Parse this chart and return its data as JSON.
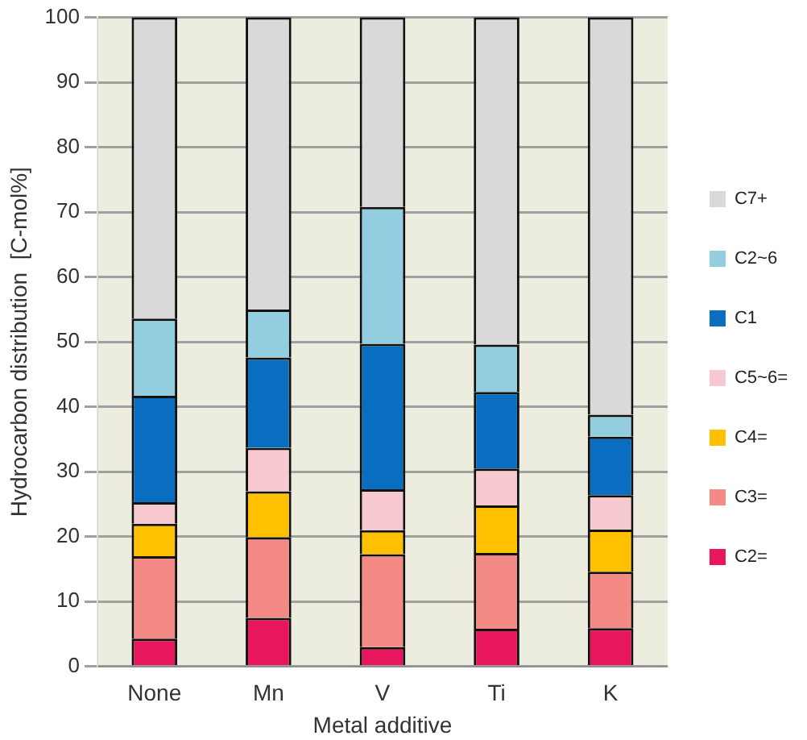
{
  "chart_data": {
    "type": "bar",
    "stacked": true,
    "xlabel": "Metal additive",
    "ylabel": "Hydrocarbon distribution  [C-mol%]",
    "categories": [
      "None",
      "Mn",
      "V",
      "Ti",
      "K"
    ],
    "series": [
      {
        "name": "C2=",
        "color": "#e8175d",
        "values": [
          4.3,
          7.5,
          3,
          5.8,
          5.9
        ]
      },
      {
        "name": "C3=",
        "color": "#f48a86",
        "values": [
          12.7,
          12.4,
          14.3,
          11.7,
          8.7
        ]
      },
      {
        "name": "C4=",
        "color": "#ffc000",
        "values": [
          5,
          7.1,
          3.7,
          7.3,
          6.5
        ]
      },
      {
        "name": "C5~6=",
        "color": "#f6c9d0",
        "values": [
          3.3,
          6.7,
          6.3,
          5.7,
          5.3
        ]
      },
      {
        "name": "C1",
        "color": "#0a6ec0",
        "values": [
          16.4,
          13.9,
          22.4,
          11.8,
          9
        ]
      },
      {
        "name": "C2~6",
        "color": "#92cde0",
        "values": [
          11.9,
          7.4,
          21.1,
          7.3,
          3.4
        ]
      },
      {
        "name": "C7+",
        "color": "#d9d9d9",
        "values": [
          46.4,
          45,
          29.2,
          50.4,
          61.2
        ]
      }
    ],
    "ylim": [
      0,
      100
    ],
    "yticks": [
      0,
      10,
      20,
      30,
      40,
      50,
      60,
      70,
      80,
      90,
      100
    ],
    "grid": "y",
    "legend": "right"
  }
}
